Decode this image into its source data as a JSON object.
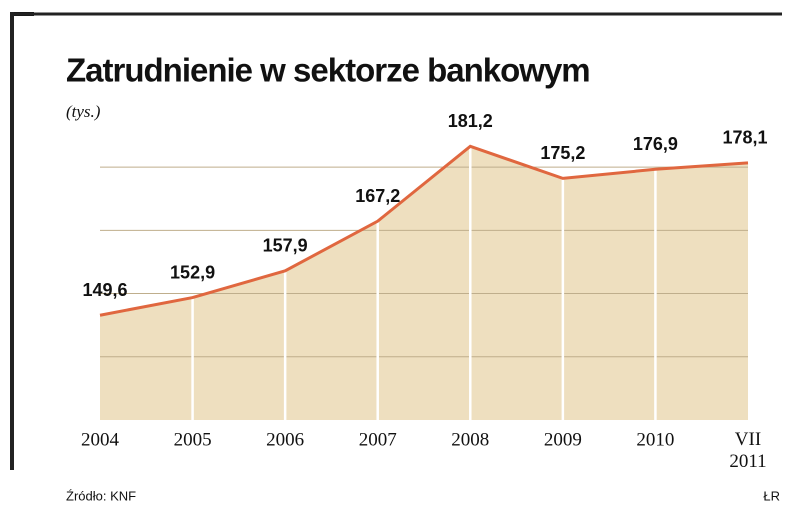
{
  "chart_data": {
    "type": "area",
    "title": "Zatrudnienie w sektorze bankowym",
    "subtitle": "(tys.)",
    "categories": [
      "2004",
      "2005",
      "2006",
      "2007",
      "2008",
      "2009",
      "2010",
      "VII 2011"
    ],
    "values": [
      149.6,
      152.9,
      157.9,
      167.2,
      181.2,
      175.2,
      176.9,
      178.1
    ],
    "value_labels": [
      "149,6",
      "152,9",
      "157,9",
      "167,2",
      "181,2",
      "175,2",
      "176,9",
      "178,1"
    ],
    "color": "#e0673f",
    "fill": "#eedfbf",
    "ylim": [
      130,
      185
    ],
    "grid": true,
    "source": "Źródło: KNF",
    "credit": "ŁR"
  }
}
